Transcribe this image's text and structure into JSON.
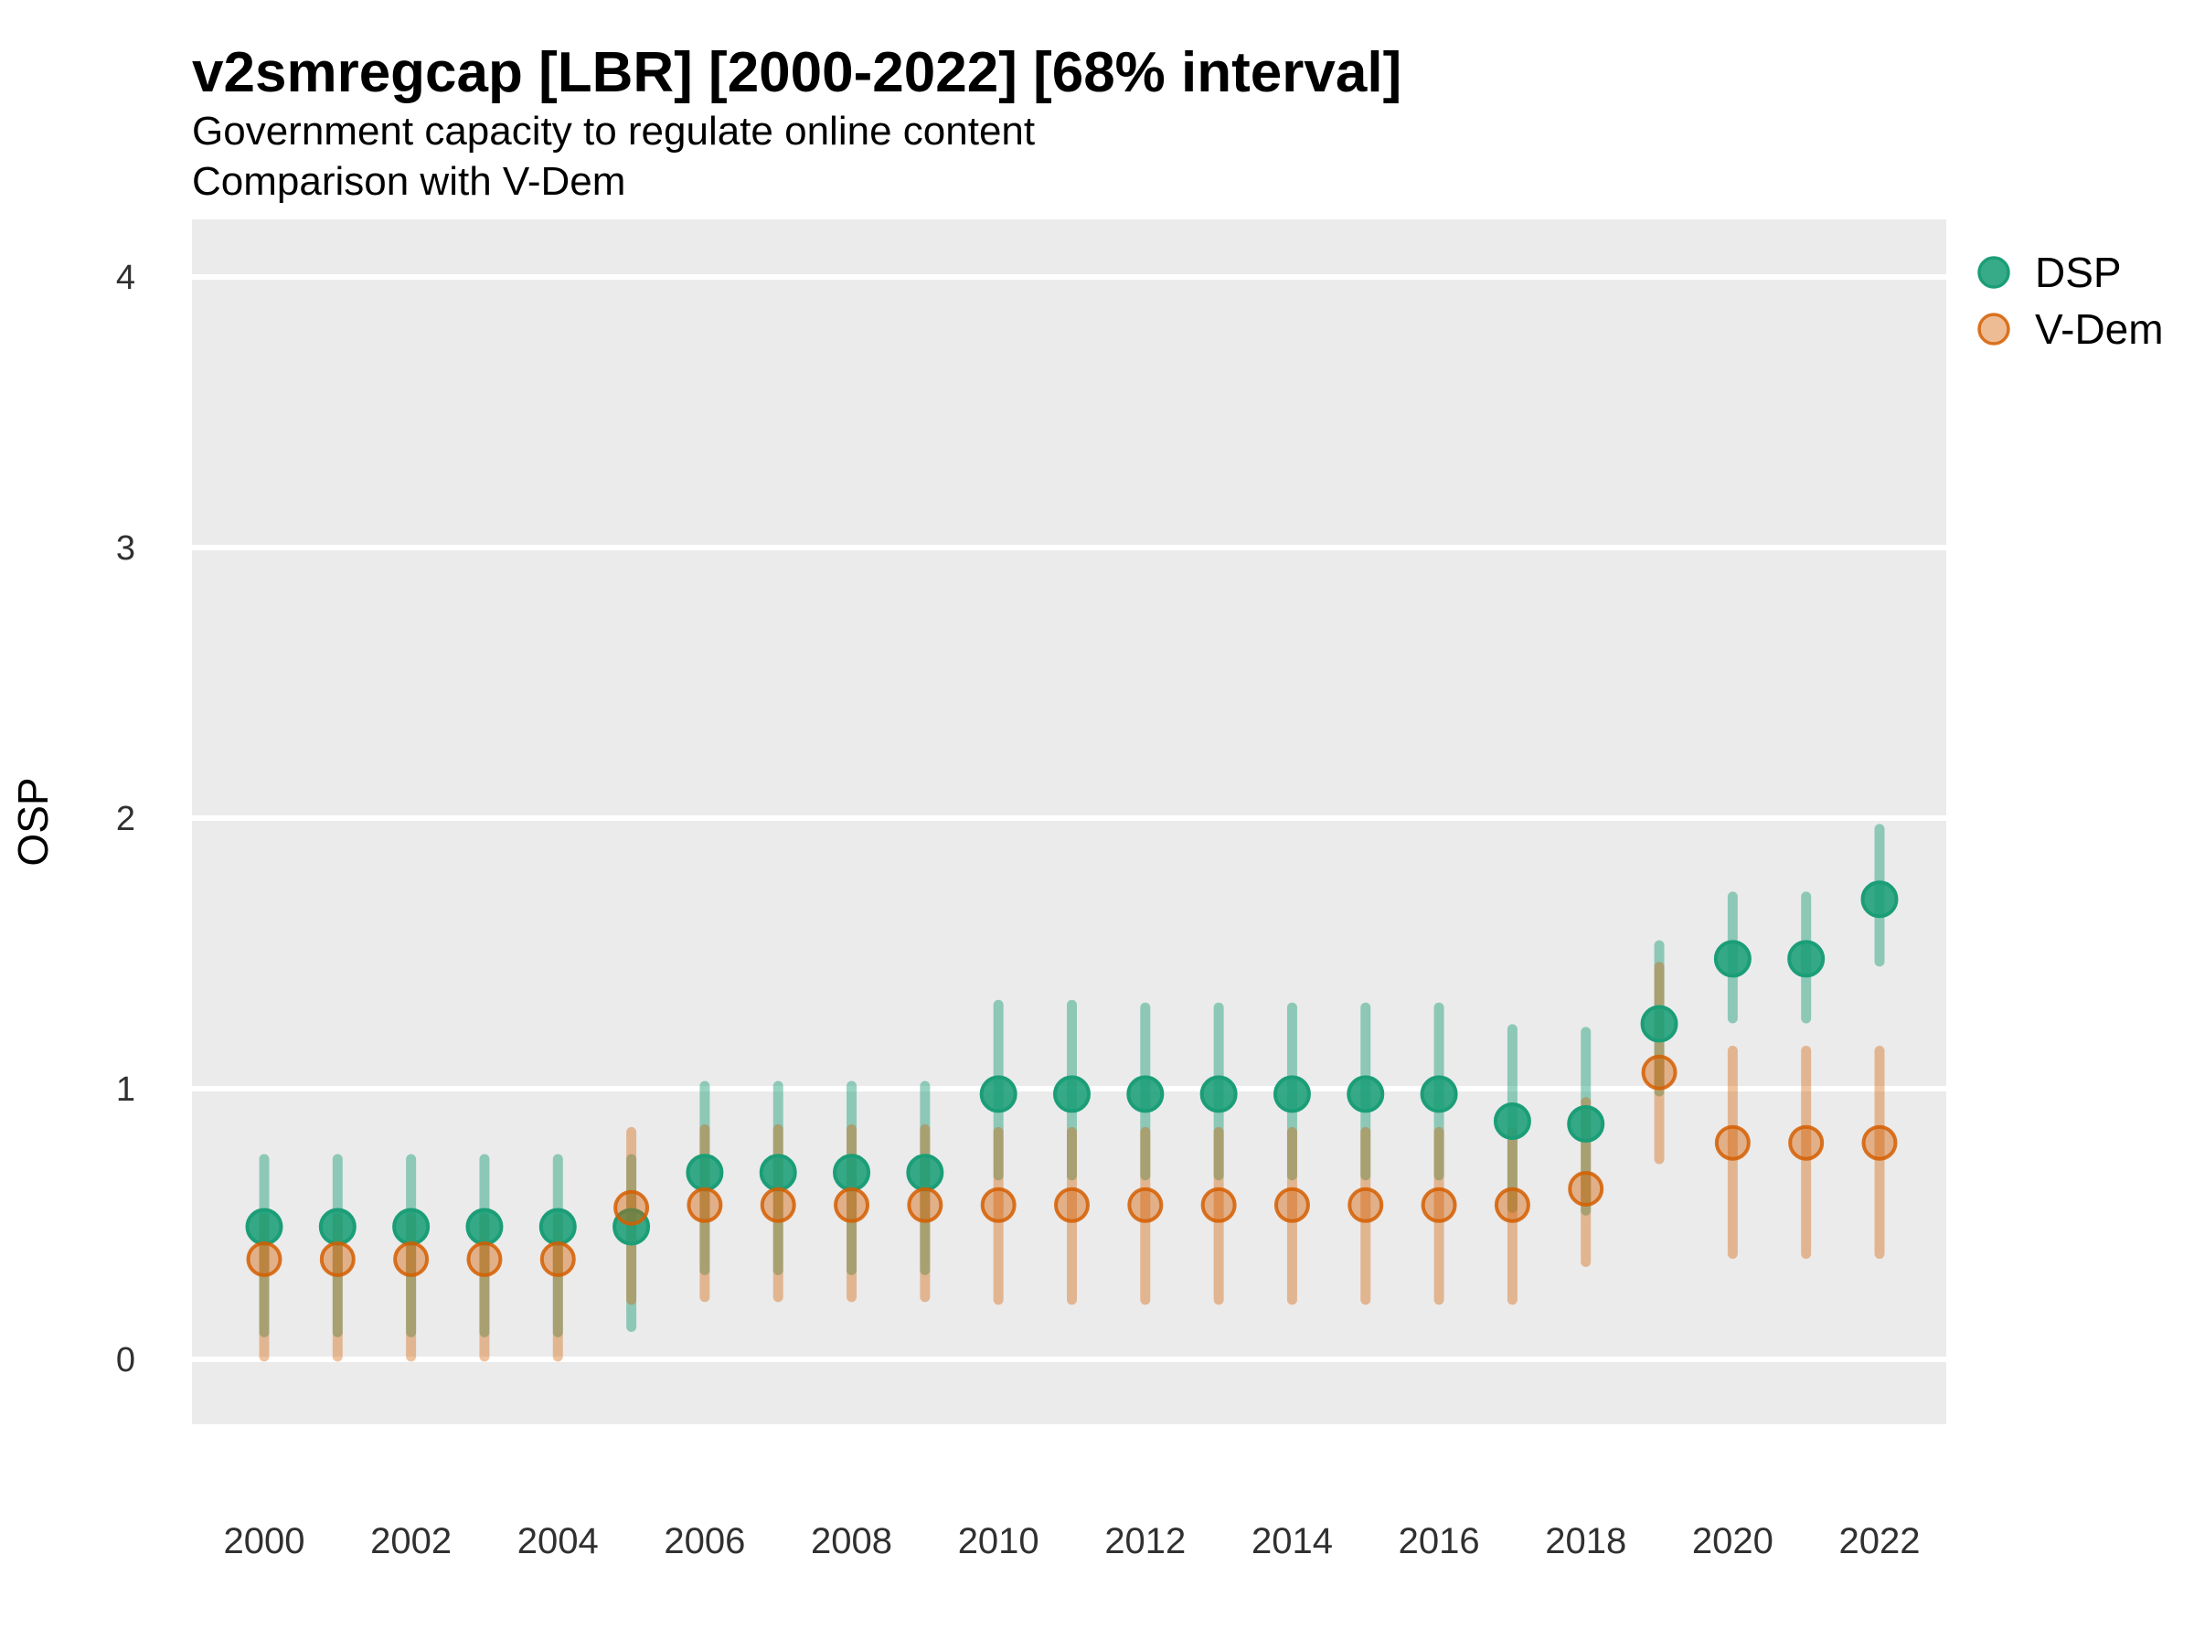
{
  "header": {
    "title": "v2smregcap [LBR] [2000-2022] [68% interval]",
    "subtitle_line1": "Government capacity to regulate online content",
    "subtitle_line2": "Comparison with V-Dem"
  },
  "legend": {
    "items": [
      {
        "label": "DSP",
        "color": "#1b9e77"
      },
      {
        "label": "V-Dem",
        "color": "#d55e00"
      }
    ]
  },
  "axes": {
    "y_label": "OSP",
    "y_ticks": [
      "0",
      "1",
      "2",
      "3",
      "4"
    ],
    "x_ticks": [
      "2000",
      "2002",
      "2004",
      "2006",
      "2008",
      "2010",
      "2012",
      "2014",
      "2016",
      "2018",
      "2020",
      "2022"
    ]
  },
  "colors": {
    "panel_background": "#ebebeb",
    "gridline": "#ffffff",
    "dsp_green": "#1b9e77",
    "vdem_orange": "#d55e00",
    "tick_label": "#303030"
  },
  "chart_data": {
    "type": "scatter",
    "title": "v2smregcap [LBR] [2000-2022] [68% interval]",
    "subtitle": "Government capacity to regulate online content — Comparison with V-Dem",
    "xlabel": "",
    "ylabel": "OSP",
    "interval": "68%",
    "xlim": [
      1999,
      2023
    ],
    "ylim": [
      -0.24,
      4.21
    ],
    "grid": "major horizontal white lines on grey panel",
    "legend_position": "right",
    "x": [
      2000,
      2001,
      2002,
      2003,
      2004,
      2005,
      2006,
      2007,
      2008,
      2009,
      2010,
      2011,
      2012,
      2013,
      2014,
      2015,
      2016,
      2017,
      2018,
      2019,
      2020,
      2021,
      2022
    ],
    "series": [
      {
        "name": "DSP",
        "color": "#1b9e77",
        "points": [
          {
            "year": 2000,
            "est": 0.49,
            "lo": 0.1,
            "hi": 0.74
          },
          {
            "year": 2001,
            "est": 0.49,
            "lo": 0.1,
            "hi": 0.74
          },
          {
            "year": 2002,
            "est": 0.49,
            "lo": 0.1,
            "hi": 0.74
          },
          {
            "year": 2003,
            "est": 0.49,
            "lo": 0.1,
            "hi": 0.74
          },
          {
            "year": 2004,
            "est": 0.49,
            "lo": 0.1,
            "hi": 0.74
          },
          {
            "year": 2005,
            "est": 0.49,
            "lo": 0.12,
            "hi": 0.74
          },
          {
            "year": 2006,
            "est": 0.69,
            "lo": 0.33,
            "hi": 1.01
          },
          {
            "year": 2007,
            "est": 0.69,
            "lo": 0.33,
            "hi": 1.01
          },
          {
            "year": 2008,
            "est": 0.69,
            "lo": 0.33,
            "hi": 1.01
          },
          {
            "year": 2009,
            "est": 0.69,
            "lo": 0.33,
            "hi": 1.01
          },
          {
            "year": 2010,
            "est": 0.98,
            "lo": 0.68,
            "hi": 1.31
          },
          {
            "year": 2011,
            "est": 0.98,
            "lo": 0.68,
            "hi": 1.31
          },
          {
            "year": 2012,
            "est": 0.98,
            "lo": 0.68,
            "hi": 1.3
          },
          {
            "year": 2013,
            "est": 0.98,
            "lo": 0.68,
            "hi": 1.3
          },
          {
            "year": 2014,
            "est": 0.98,
            "lo": 0.68,
            "hi": 1.3
          },
          {
            "year": 2015,
            "est": 0.98,
            "lo": 0.68,
            "hi": 1.3
          },
          {
            "year": 2016,
            "est": 0.98,
            "lo": 0.68,
            "hi": 1.3
          },
          {
            "year": 2017,
            "est": 0.88,
            "lo": 0.56,
            "hi": 1.22
          },
          {
            "year": 2018,
            "est": 0.87,
            "lo": 0.55,
            "hi": 1.21
          },
          {
            "year": 2019,
            "est": 1.24,
            "lo": 0.99,
            "hi": 1.53
          },
          {
            "year": 2020,
            "est": 1.48,
            "lo": 1.26,
            "hi": 1.71
          },
          {
            "year": 2021,
            "est": 1.48,
            "lo": 1.26,
            "hi": 1.71
          },
          {
            "year": 2022,
            "est": 1.7,
            "lo": 1.47,
            "hi": 1.96
          }
        ]
      },
      {
        "name": "V-Dem",
        "color": "#d55e00",
        "points": [
          {
            "year": 2000,
            "est": 0.37,
            "lo": 0.01,
            "hi": 0.52
          },
          {
            "year": 2001,
            "est": 0.37,
            "lo": 0.01,
            "hi": 0.52
          },
          {
            "year": 2002,
            "est": 0.37,
            "lo": 0.01,
            "hi": 0.52
          },
          {
            "year": 2003,
            "est": 0.37,
            "lo": 0.01,
            "hi": 0.52
          },
          {
            "year": 2004,
            "est": 0.37,
            "lo": 0.01,
            "hi": 0.52
          },
          {
            "year": 2005,
            "est": 0.56,
            "lo": 0.22,
            "hi": 0.84
          },
          {
            "year": 2006,
            "est": 0.57,
            "lo": 0.23,
            "hi": 0.85
          },
          {
            "year": 2007,
            "est": 0.57,
            "lo": 0.23,
            "hi": 0.85
          },
          {
            "year": 2008,
            "est": 0.57,
            "lo": 0.23,
            "hi": 0.85
          },
          {
            "year": 2009,
            "est": 0.57,
            "lo": 0.23,
            "hi": 0.85
          },
          {
            "year": 2010,
            "est": 0.57,
            "lo": 0.22,
            "hi": 0.84
          },
          {
            "year": 2011,
            "est": 0.57,
            "lo": 0.22,
            "hi": 0.84
          },
          {
            "year": 2012,
            "est": 0.57,
            "lo": 0.22,
            "hi": 0.84
          },
          {
            "year": 2013,
            "est": 0.57,
            "lo": 0.22,
            "hi": 0.84
          },
          {
            "year": 2014,
            "est": 0.57,
            "lo": 0.22,
            "hi": 0.84
          },
          {
            "year": 2015,
            "est": 0.57,
            "lo": 0.22,
            "hi": 0.84
          },
          {
            "year": 2016,
            "est": 0.57,
            "lo": 0.22,
            "hi": 0.84
          },
          {
            "year": 2017,
            "est": 0.57,
            "lo": 0.22,
            "hi": 0.84
          },
          {
            "year": 2018,
            "est": 0.63,
            "lo": 0.36,
            "hi": 0.95
          },
          {
            "year": 2019,
            "est": 1.06,
            "lo": 0.74,
            "hi": 1.45
          },
          {
            "year": 2020,
            "est": 0.8,
            "lo": 0.39,
            "hi": 1.14
          },
          {
            "year": 2021,
            "est": 0.8,
            "lo": 0.39,
            "hi": 1.14
          },
          {
            "year": 2022,
            "est": 0.8,
            "lo": 0.39,
            "hi": 1.14
          }
        ]
      }
    ]
  }
}
